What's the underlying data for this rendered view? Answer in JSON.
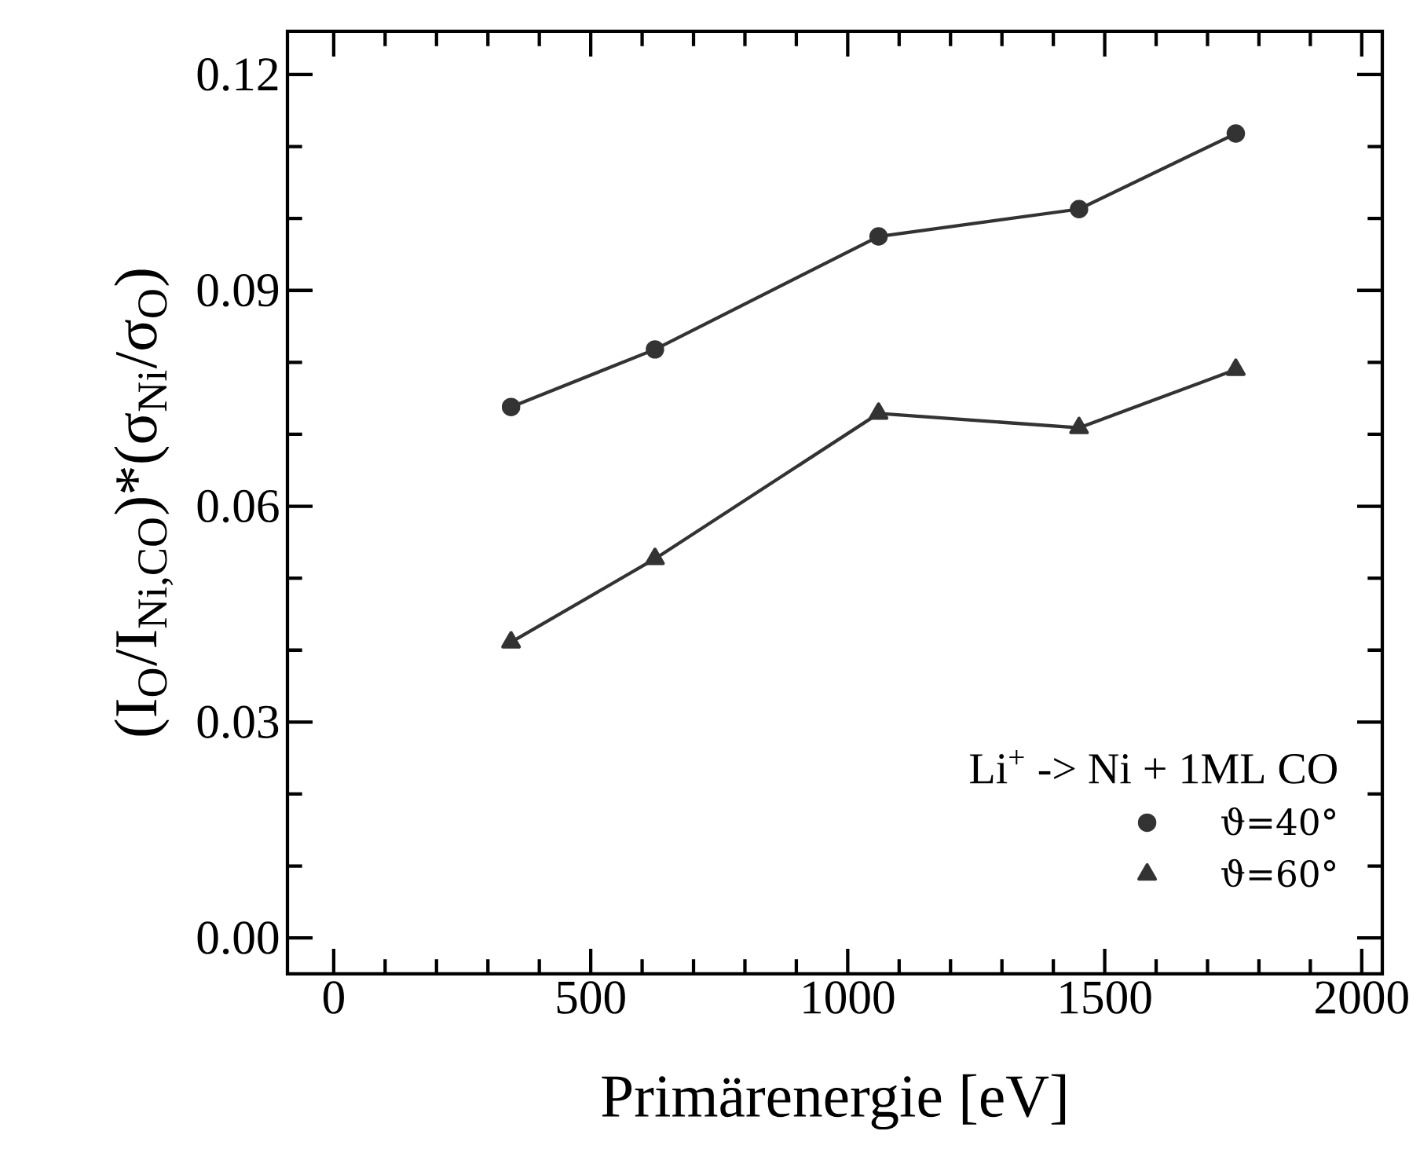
{
  "chart_data": {
    "type": "line",
    "xlabel": "Primärenergie [eV]",
    "ylabel": "(I$_{O}$/I$_{Ni,CO}$)*(σ$_{Ni}$/σ$_{O}$)",
    "legend_title": "Li$^{+}$ -> Ni + 1ML CO",
    "legend": "bottom right",
    "xlim": [
      -90,
      2040
    ],
    "ylim": [
      -0.005,
      0.126
    ],
    "xticks": [
      0,
      500,
      1000,
      1500,
      2000
    ],
    "yticks": [
      {
        "value": 0,
        "label": "0.00"
      },
      {
        "value": 0.03,
        "label": "0.03"
      },
      {
        "value": 0.06,
        "label": "0.06"
      },
      {
        "value": 0.09,
        "label": "0.09"
      },
      {
        "value": 0.12,
        "label": "0.12"
      }
    ],
    "grid": false,
    "line_style": "solid",
    "series": [
      {
        "name": "ϑ=40°",
        "color": "#333333",
        "marker": "circle",
        "x": [
          345,
          625,
          1060,
          1450,
          1755
        ],
        "values": [
          0.0738,
          0.0818,
          0.0975,
          0.1013,
          0.1118
        ]
      },
      {
        "name": "ϑ=60°",
        "color": "#333333",
        "marker": "triangle",
        "x": [
          345,
          625,
          1060,
          1450,
          1755
        ],
        "values": [
          0.0411,
          0.0527,
          0.0729,
          0.0709,
          0.079
        ]
      }
    ]
  }
}
